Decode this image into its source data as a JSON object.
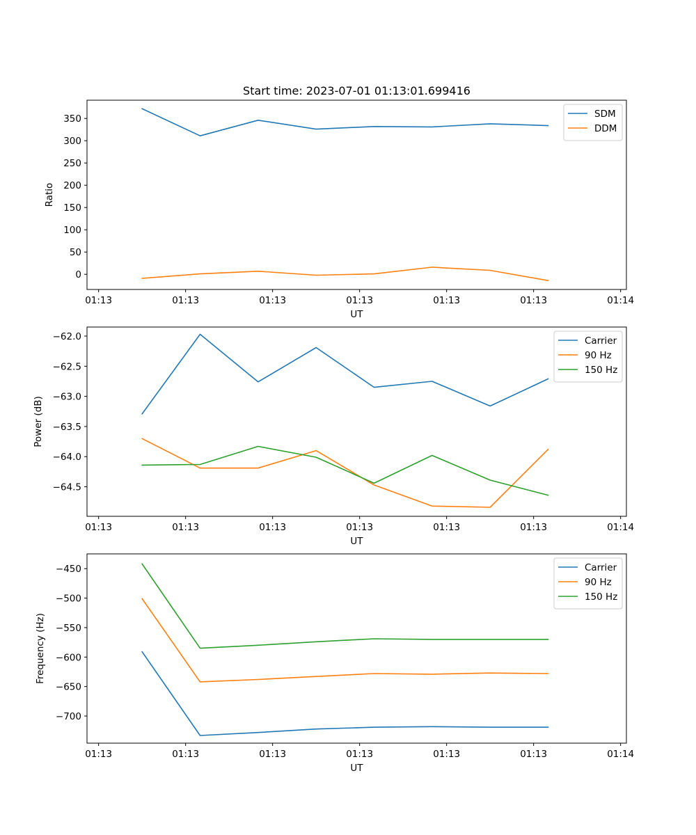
{
  "figure_title": "Start time: 2023-07-01 01:13:01.699416",
  "chart_data": [
    {
      "type": "line",
      "title": "Start time: 2023-07-01 01:13:01.699416",
      "xlabel": "UT",
      "ylabel": "Ratio",
      "xlim": [
        0,
        9.3
      ],
      "x_ticks": [
        0.2,
        1.7,
        3.2,
        4.7,
        6.2,
        7.7,
        9.2
      ],
      "x_tick_labels": [
        "01:13",
        "01:13",
        "01:13",
        "01:13",
        "01:13",
        "01:13",
        "01:14"
      ],
      "ylim": [
        -34,
        391
      ],
      "y_ticks": [
        0,
        50,
        100,
        150,
        200,
        250,
        300,
        350
      ],
      "y_tick_labels": [
        "0",
        "50",
        "100",
        "150",
        "200",
        "250",
        "300",
        "350"
      ],
      "x": [
        0.95,
        1.95,
        2.95,
        3.95,
        4.95,
        5.95,
        6.95,
        7.95
      ],
      "series": [
        {
          "name": "SDM",
          "color": "#1f77b4",
          "values": [
            372,
            311,
            346,
            326,
            332,
            331,
            338,
            334
          ]
        },
        {
          "name": "DDM",
          "color": "#ff7f0e",
          "values": [
            -9,
            1,
            7,
            -2,
            1,
            16,
            9,
            -14
          ]
        }
      ],
      "legend": "top-right"
    },
    {
      "type": "line",
      "title": "",
      "xlabel": "UT",
      "ylabel": "Power (dB)",
      "xlim": [
        0,
        9.3
      ],
      "x_ticks": [
        0.2,
        1.7,
        3.2,
        4.7,
        6.2,
        7.7,
        9.2
      ],
      "x_tick_labels": [
        "01:13",
        "01:13",
        "01:13",
        "01:13",
        "01:13",
        "01:13",
        "01:14"
      ],
      "ylim": [
        -64.99,
        -61.85
      ],
      "y_ticks": [
        -62.0,
        -62.5,
        -63.0,
        -63.5,
        -64.0,
        -64.5
      ],
      "y_tick_labels": [
        "−62.0",
        "−62.5",
        "−63.0",
        "−63.5",
        "−64.0",
        "−64.5"
      ],
      "x": [
        0.95,
        1.95,
        2.95,
        3.95,
        4.95,
        5.95,
        6.95,
        7.95
      ],
      "series": [
        {
          "name": "Carrier",
          "color": "#1f77b4",
          "values": [
            -63.29,
            -61.97,
            -62.76,
            -62.19,
            -62.85,
            -62.75,
            -63.16,
            -62.71
          ]
        },
        {
          "name": "90 Hz",
          "color": "#ff7f0e",
          "values": [
            -63.7,
            -64.19,
            -64.19,
            -63.9,
            -64.47,
            -64.82,
            -64.84,
            -63.88
          ]
        },
        {
          "name": "150 Hz",
          "color": "#2ca02c",
          "values": [
            -64.14,
            -64.13,
            -63.83,
            -64.01,
            -64.44,
            -63.98,
            -64.39,
            -64.64
          ]
        }
      ],
      "legend": "top-right"
    },
    {
      "type": "line",
      "title": "",
      "xlabel": "UT",
      "ylabel": "Frequency (Hz)",
      "xlim": [
        0,
        9.3
      ],
      "x_ticks": [
        0.2,
        1.7,
        3.2,
        4.7,
        6.2,
        7.7,
        9.2
      ],
      "x_tick_labels": [
        "01:13",
        "01:13",
        "01:13",
        "01:13",
        "01:13",
        "01:13",
        "01:14"
      ],
      "ylim": [
        -746,
        -425
      ],
      "y_ticks": [
        -450,
        -500,
        -550,
        -600,
        -650,
        -700
      ],
      "y_tick_labels": [
        "−450",
        "−500",
        "−550",
        "−600",
        "−650",
        "−700"
      ],
      "x": [
        0.95,
        1.95,
        2.95,
        3.95,
        4.95,
        5.95,
        6.95,
        7.95
      ],
      "series": [
        {
          "name": "Carrier",
          "color": "#1f77b4",
          "values": [
            -591,
            -733,
            -728,
            -722,
            -719,
            -718,
            -719,
            -719
          ]
        },
        {
          "name": "90 Hz",
          "color": "#ff7f0e",
          "values": [
            -501,
            -642,
            -638,
            -633,
            -628,
            -629,
            -627,
            -628
          ]
        },
        {
          "name": "150 Hz",
          "color": "#2ca02c",
          "values": [
            -442,
            -585,
            -580,
            -574,
            -569,
            -570,
            -570,
            -570
          ]
        }
      ],
      "legend": "top-right"
    }
  ]
}
